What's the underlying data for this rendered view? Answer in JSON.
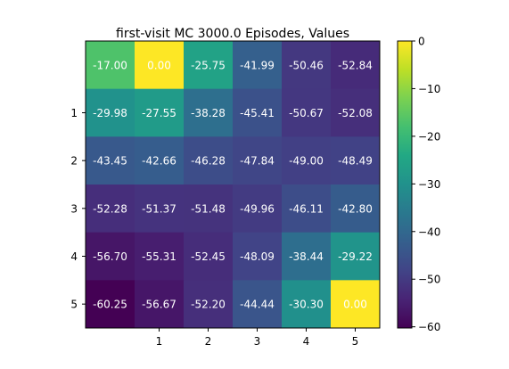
{
  "chart_data": {
    "type": "heatmap",
    "title": "first-visit MC 3000.0 Episodes, Values",
    "xlabel": "",
    "ylabel": "",
    "x_tick_labels": [
      "",
      "1",
      "2",
      "3",
      "4",
      "5"
    ],
    "y_tick_labels": [
      "",
      "1",
      "2",
      "3",
      "4",
      "5"
    ],
    "values": [
      [
        -17.0,
        0.0,
        -25.75,
        -41.99,
        -50.46,
        -52.84
      ],
      [
        -29.98,
        -27.55,
        -38.28,
        -45.41,
        -50.67,
        -52.08
      ],
      [
        -43.45,
        -42.66,
        -46.28,
        -47.84,
        -49.0,
        -48.49
      ],
      [
        -52.28,
        -51.37,
        -51.48,
        -49.96,
        -46.11,
        -42.8
      ],
      [
        -56.7,
        -55.31,
        -52.45,
        -48.09,
        -38.44,
        -29.22
      ],
      [
        -60.25,
        -56.67,
        -52.2,
        -44.44,
        -30.3,
        0.0
      ]
    ],
    "cell_labels": [
      [
        "-17.00",
        "0.00",
        "-25.75",
        "-41.99",
        "-50.46",
        "-52.84"
      ],
      [
        "-29.98",
        "-27.55",
        "-38.28",
        "-45.41",
        "-50.67",
        "-52.08"
      ],
      [
        "-43.45",
        "-42.66",
        "-46.28",
        "-47.84",
        "-49.00",
        "-48.49"
      ],
      [
        "-52.28",
        "-51.37",
        "-51.48",
        "-49.96",
        "-46.11",
        "-42.80"
      ],
      [
        "-56.70",
        "-55.31",
        "-52.45",
        "-48.09",
        "-38.44",
        "-29.22"
      ],
      [
        "-60.25",
        "-56.67",
        "-52.20",
        "-44.44",
        "-30.30",
        "0.00"
      ]
    ],
    "colormap": "viridis",
    "vmin": -60.25,
    "vmax": 0,
    "colorbar": {
      "ticks": [
        0,
        -10,
        -20,
        -30,
        -40,
        -50,
        -60
      ],
      "tick_labels": [
        "0",
        "−10",
        "−20",
        "−30",
        "−40",
        "−50",
        "−60"
      ]
    },
    "grid": false,
    "legend": "colorbar-right"
  }
}
